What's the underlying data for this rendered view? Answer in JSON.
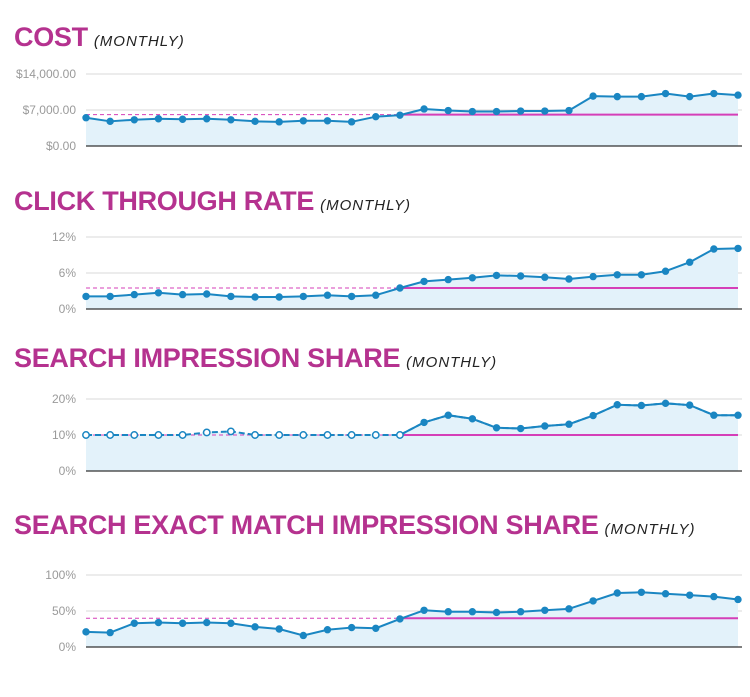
{
  "chart_data": [
    {
      "type": "line",
      "title": "COST",
      "subtitle": "(MONTHLY)",
      "ylim": [
        0,
        14000
      ],
      "yticks": [
        "$14,000.00",
        "$7,000.00",
        "$0.00"
      ],
      "ytick_values": [
        14000,
        7000,
        0
      ],
      "baseline": 6100,
      "x": [
        1,
        2,
        3,
        4,
        5,
        6,
        7,
        8,
        9,
        10,
        11,
        12,
        13,
        14,
        15,
        16,
        17,
        18,
        19,
        20,
        21,
        22,
        23,
        24,
        25,
        26,
        27,
        28
      ],
      "values": [
        5500,
        4800,
        5100,
        5300,
        5200,
        5300,
        5100,
        4800,
        4700,
        4900,
        4900,
        4700,
        5700,
        6000,
        7200,
        6900,
        6700,
        6700,
        6800,
        6800,
        6900,
        9700,
        9600,
        9600,
        10200,
        9600,
        10200,
        9900
      ],
      "colors": {
        "line": "#1a86c2",
        "fill": "#e3f2fa",
        "baseline": "#d53fb8",
        "grid": "#d9d9d9",
        "axis": "#333333"
      }
    },
    {
      "type": "line",
      "title": "CLICK THROUGH RATE",
      "subtitle": "(MONTHLY)",
      "ylim": [
        0,
        12
      ],
      "yticks": [
        "12%",
        "6%",
        "0%"
      ],
      "ytick_values": [
        12,
        6,
        0
      ],
      "baseline": 3.5,
      "x": [
        1,
        2,
        3,
        4,
        5,
        6,
        7,
        8,
        9,
        10,
        11,
        12,
        13,
        14,
        15,
        16,
        17,
        18,
        19,
        20,
        21,
        22,
        23,
        24,
        25,
        26,
        27,
        28
      ],
      "values": [
        2.1,
        2.1,
        2.4,
        2.7,
        2.4,
        2.5,
        2.1,
        2.0,
        2.0,
        2.1,
        2.3,
        2.1,
        2.3,
        3.5,
        4.6,
        4.9,
        5.2,
        5.6,
        5.5,
        5.3,
        5.0,
        5.4,
        5.7,
        5.7,
        6.3,
        7.8,
        10.0,
        10.1
      ],
      "colors": {
        "line": "#1a86c2",
        "fill": "#e3f2fa",
        "baseline": "#d53fb8",
        "grid": "#d9d9d9",
        "axis": "#333333"
      }
    },
    {
      "type": "line",
      "title": "SEARCH IMPRESSION SHARE",
      "subtitle": "(MONTHLY)",
      "ylim": [
        0,
        20
      ],
      "yticks": [
        "20%",
        "10%",
        "0%"
      ],
      "ytick_values": [
        20,
        10,
        0
      ],
      "baseline": 10,
      "x": [
        1,
        2,
        3,
        4,
        5,
        6,
        7,
        8,
        9,
        10,
        11,
        12,
        13,
        14,
        15,
        16,
        17,
        18,
        19,
        20,
        21,
        22,
        23,
        24,
        25,
        26,
        27,
        28
      ],
      "values": [
        10,
        10,
        10,
        10,
        10,
        10.7,
        11,
        10,
        10,
        10,
        10,
        10,
        10,
        10,
        13.5,
        15.5,
        14.5,
        12,
        11.8,
        12.5,
        13,
        15.4,
        18.4,
        18.2,
        18.8,
        18.3,
        15.5,
        15.5
      ],
      "colors": {
        "line": "#1a86c2",
        "fill": "#e3f2fa",
        "baseline": "#d53fb8",
        "grid": "#d9d9d9",
        "axis": "#333333"
      }
    },
    {
      "type": "line",
      "title": "SEARCH EXACT MATCH IMPRESSION SHARE",
      "subtitle": "(MONTHLY)",
      "ylim": [
        0,
        100
      ],
      "yticks": [
        "100%",
        "50%",
        "0%"
      ],
      "ytick_values": [
        100,
        50,
        0
      ],
      "baseline": 40,
      "x": [
        1,
        2,
        3,
        4,
        5,
        6,
        7,
        8,
        9,
        10,
        11,
        12,
        13,
        14,
        15,
        16,
        17,
        18,
        19,
        20,
        21,
        22,
        23,
        24,
        25,
        26,
        27,
        28
      ],
      "values": [
        21,
        20,
        33,
        34,
        33,
        34,
        33,
        28,
        25,
        16,
        24,
        27,
        26,
        39,
        51,
        49,
        49,
        48,
        49,
        51,
        53,
        64,
        75,
        76,
        74,
        72,
        70,
        66
      ],
      "colors": {
        "line": "#1a86c2",
        "fill": "#e3f2fa",
        "baseline": "#d53fb8",
        "grid": "#d9d9d9",
        "axis": "#333333"
      }
    }
  ]
}
